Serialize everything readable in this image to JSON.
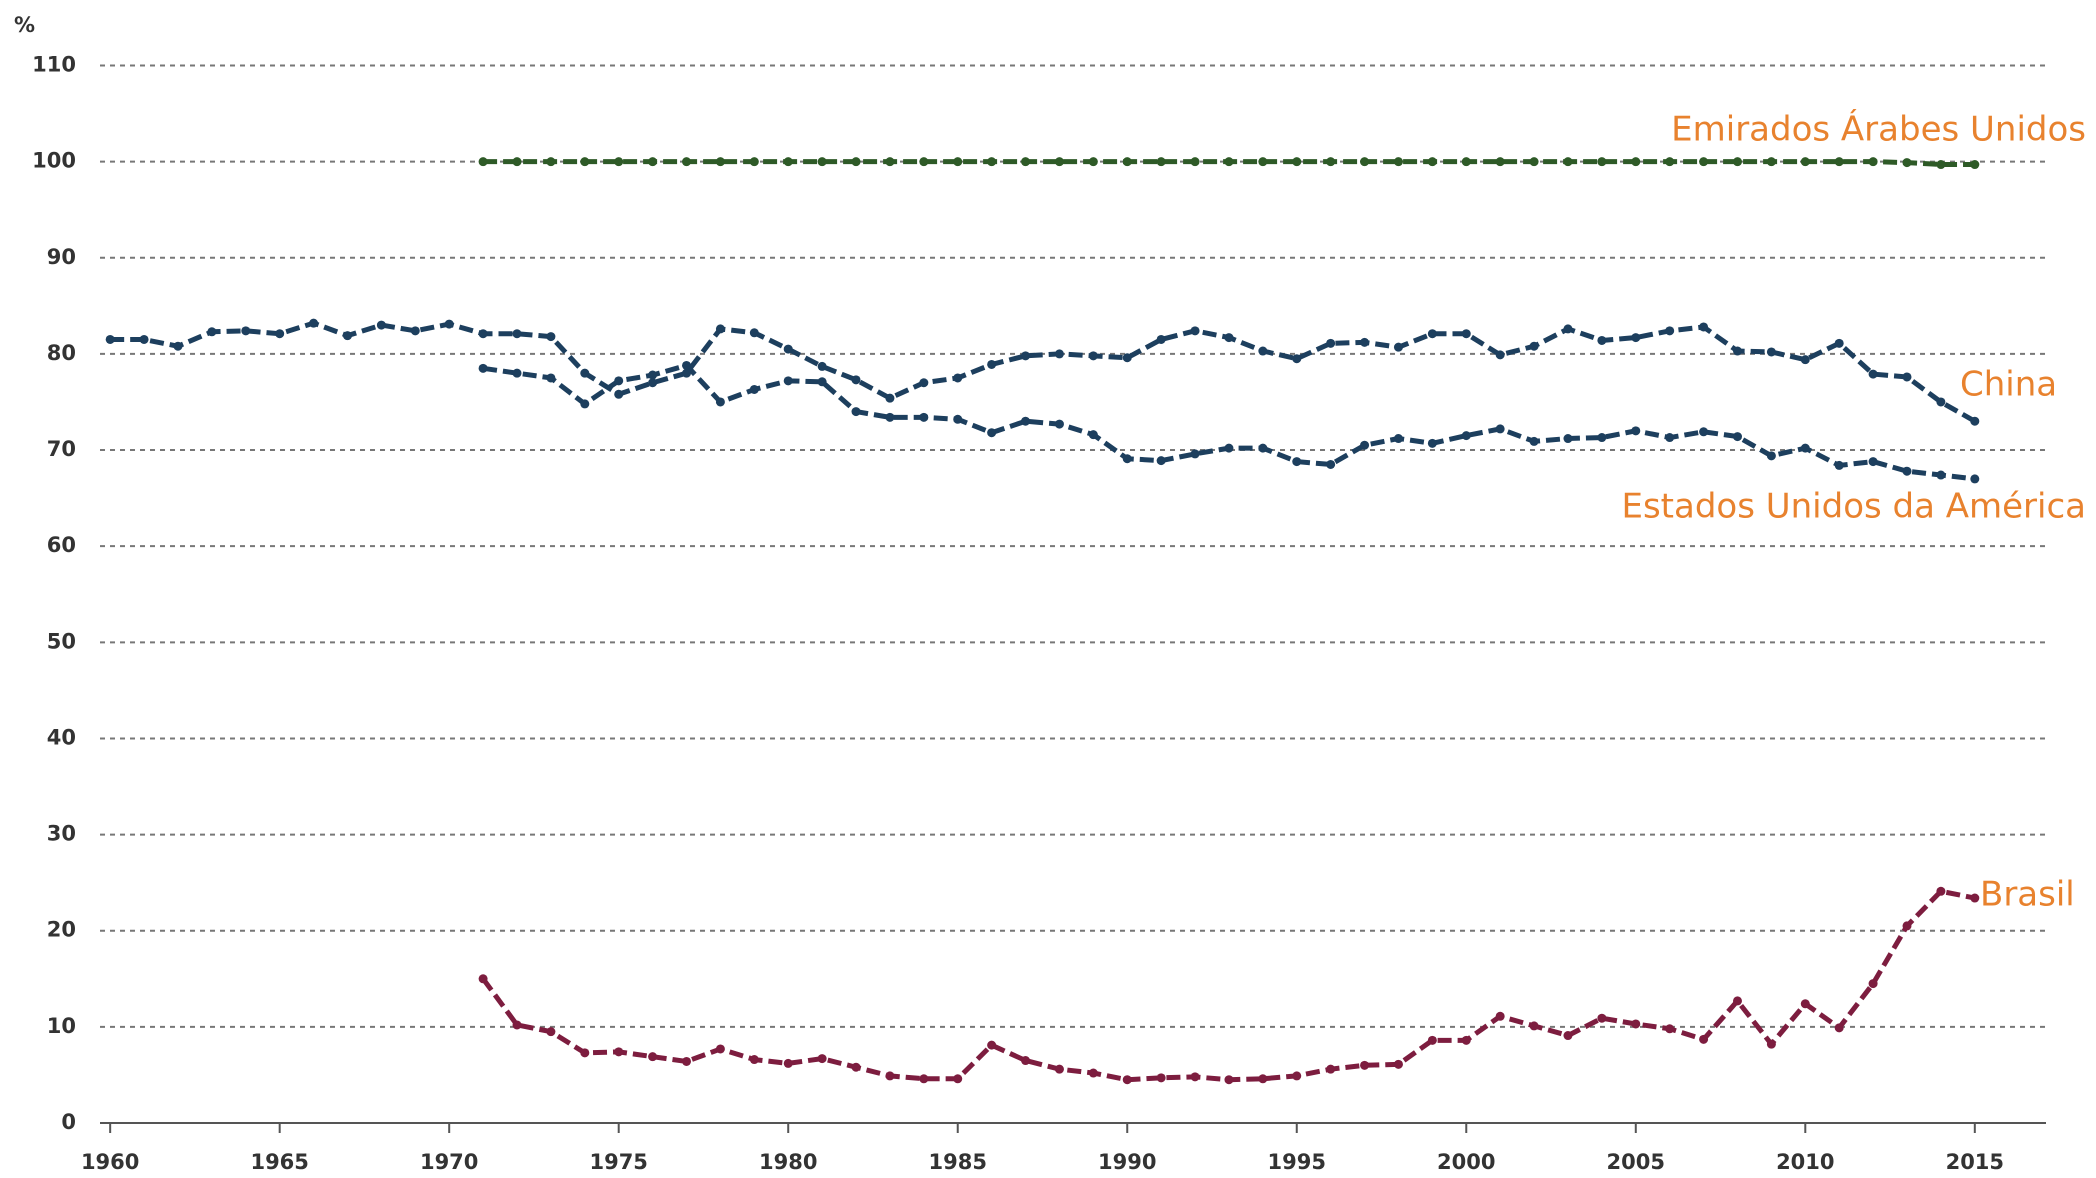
{
  "chart_data": {
    "type": "line",
    "y_label": "%",
    "x": [
      1960,
      1961,
      1962,
      1963,
      1964,
      1965,
      1966,
      1967,
      1968,
      1969,
      1970,
      1971,
      1972,
      1973,
      1974,
      1975,
      1976,
      1977,
      1978,
      1979,
      1980,
      1981,
      1982,
      1983,
      1984,
      1985,
      1986,
      1987,
      1988,
      1989,
      1990,
      1991,
      1992,
      1993,
      1994,
      1995,
      1996,
      1997,
      1998,
      1999,
      2000,
      2001,
      2002,
      2003,
      2004,
      2005,
      2006,
      2007,
      2008,
      2009,
      2010,
      2011,
      2012,
      2013,
      2014,
      2015
    ],
    "series": [
      {
        "name": "Emirados Árabes Unidos",
        "color": "#2e5a27",
        "values": [
          null,
          null,
          null,
          null,
          null,
          null,
          null,
          null,
          null,
          null,
          null,
          100,
          100,
          100,
          100,
          100,
          100,
          100,
          100,
          100,
          100,
          100,
          100,
          100,
          100,
          100,
          100,
          100,
          100,
          100,
          100,
          100,
          100,
          100,
          100,
          100,
          100,
          100,
          100,
          100,
          100,
          100,
          100,
          100,
          100,
          100,
          100,
          100,
          100,
          100,
          100,
          100,
          100,
          99.9,
          99.7,
          99.7
        ]
      },
      {
        "name": "China",
        "color": "#1d3f5e",
        "values": [
          81.5,
          81.5,
          80.8,
          82.3,
          82.4,
          82.1,
          83.2,
          81.9,
          83.0,
          82.4,
          83.1,
          82.1,
          82.1,
          81.8,
          78.0,
          75.8,
          77.0,
          78.0,
          82.6,
          82.2,
          80.5,
          78.7,
          77.3,
          75.4,
          77.0,
          77.5,
          78.9,
          79.8,
          80.0,
          79.8,
          79.6,
          81.5,
          82.4,
          81.7,
          80.3,
          79.5,
          81.1,
          81.2,
          80.7,
          82.1,
          82.1,
          79.9,
          80.8,
          82.6,
          81.4,
          81.7,
          82.4,
          82.8,
          80.3,
          80.2,
          79.4,
          81.1,
          77.9,
          77.6,
          75.0,
          73.0
        ]
      },
      {
        "name": "Estados Unidos da América",
        "color": "#1d3f5e",
        "values": [
          null,
          null,
          null,
          null,
          null,
          null,
          null,
          null,
          null,
          null,
          null,
          78.5,
          78.0,
          77.5,
          74.8,
          77.2,
          77.8,
          78.8,
          75.0,
          76.3,
          77.2,
          77.1,
          74.0,
          73.4,
          73.4,
          73.2,
          71.8,
          73.0,
          72.7,
          71.6,
          69.1,
          68.9,
          69.6,
          70.2,
          70.2,
          68.8,
          68.5,
          70.5,
          71.2,
          70.7,
          71.5,
          72.2,
          70.9,
          71.2,
          71.3,
          72.0,
          71.3,
          71.9,
          71.4,
          69.4,
          70.2,
          68.4,
          68.8,
          67.8,
          67.4,
          67.0
        ]
      },
      {
        "name": "Brasil",
        "color": "#7d1d3f",
        "values": [
          null,
          null,
          null,
          null,
          null,
          null,
          null,
          null,
          null,
          null,
          null,
          15.0,
          10.2,
          9.5,
          7.3,
          7.4,
          6.9,
          6.4,
          7.7,
          6.6,
          6.2,
          6.7,
          5.8,
          4.9,
          4.6,
          4.6,
          8.1,
          6.5,
          5.6,
          5.2,
          4.5,
          4.7,
          4.8,
          4.5,
          4.6,
          4.9,
          5.6,
          6.0,
          6.1,
          8.6,
          8.6,
          11.1,
          10.1,
          9.1,
          10.9,
          10.3,
          9.8,
          8.7,
          12.7,
          8.2,
          12.4,
          9.9,
          14.5,
          20.5,
          24.1,
          23.4
        ]
      }
    ],
    "label_color": "#e8822e",
    "xlim": [
      1959.7,
      2017.1
    ],
    "xticks": [
      1960,
      1965,
      1970,
      1975,
      1980,
      1985,
      1990,
      1995,
      2000,
      2005,
      2010,
      2015
    ],
    "ylim": [
      0,
      110
    ],
    "yticks": [
      0,
      10,
      20,
      30,
      40,
      50,
      60,
      70,
      80,
      90,
      100,
      110
    ],
    "grid": true
  }
}
